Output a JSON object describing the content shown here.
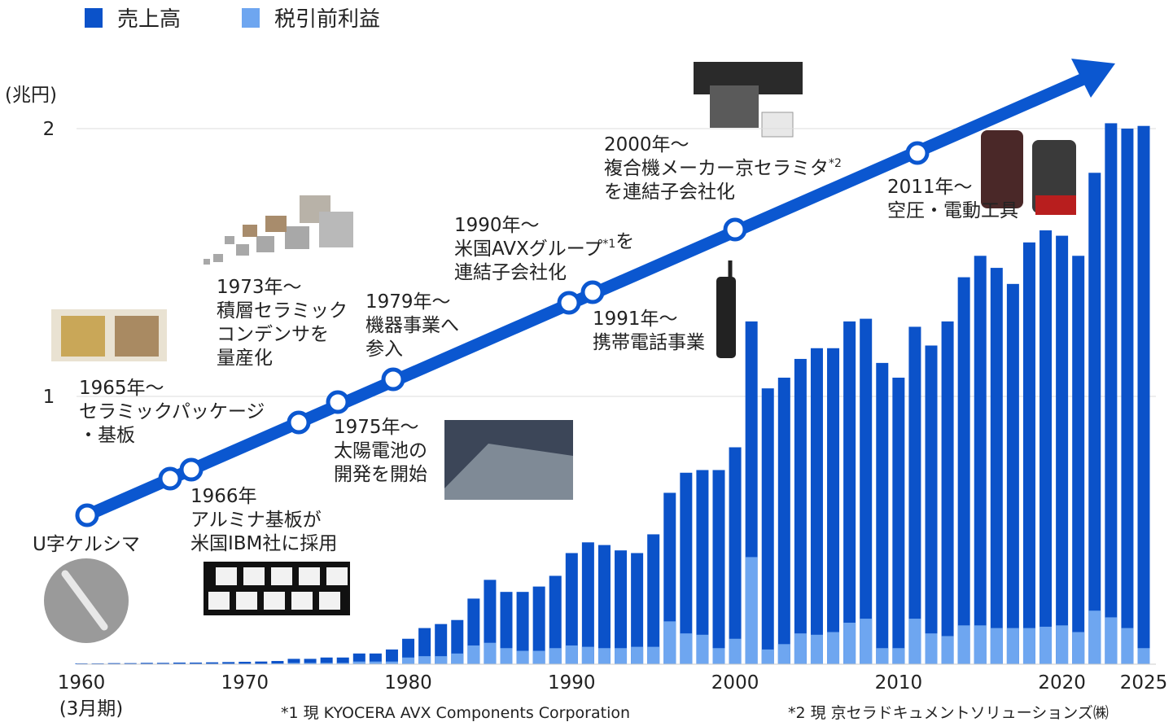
{
  "chart_data": {
    "type": "bar",
    "y_unit": "(兆円)",
    "x_unit": "(3月期)",
    "x": [
      1960,
      1961,
      1962,
      1963,
      1964,
      1965,
      1966,
      1967,
      1968,
      1969,
      1970,
      1971,
      1972,
      1973,
      1974,
      1975,
      1976,
      1977,
      1978,
      1979,
      1980,
      1981,
      1982,
      1983,
      1984,
      1985,
      1986,
      1987,
      1988,
      1989,
      1990,
      1991,
      1992,
      1993,
      1994,
      1995,
      1996,
      1997,
      1998,
      1999,
      2000,
      2001,
      2002,
      2003,
      2004,
      2005,
      2006,
      2007,
      2008,
      2009,
      2010,
      2011,
      2012,
      2013,
      2014,
      2015,
      2016,
      2017,
      2018,
      2019,
      2020,
      2021,
      2022,
      2023,
      2024,
      2025
    ],
    "xlim": [
      1960,
      2025
    ],
    "xticks": [
      1960,
      1970,
      1980,
      1990,
      2000,
      2010,
      2020,
      2025
    ],
    "ylim": [
      0,
      2.1
    ],
    "yticks": [
      1,
      2
    ],
    "grid": true,
    "series": [
      {
        "name": "売上高",
        "color": "#0b52c9",
        "values": [
          0.003,
          0.003,
          0.004,
          0.004,
          0.005,
          0.005,
          0.006,
          0.006,
          0.007,
          0.008,
          0.009,
          0.01,
          0.012,
          0.02,
          0.02,
          0.025,
          0.025,
          0.04,
          0.04,
          0.055,
          0.095,
          0.135,
          0.15,
          0.165,
          0.245,
          0.315,
          0.27,
          0.27,
          0.29,
          0.33,
          0.415,
          0.455,
          0.445,
          0.425,
          0.415,
          0.485,
          0.64,
          0.715,
          0.725,
          0.725,
          0.81,
          1.28,
          1.03,
          1.07,
          1.14,
          1.18,
          1.18,
          1.28,
          1.29,
          1.125,
          1.07,
          1.26,
          1.19,
          1.28,
          1.445,
          1.525,
          1.48,
          1.42,
          1.575,
          1.62,
          1.6,
          1.525,
          1.835,
          2.02,
          2.0,
          2.01
        ]
      },
      {
        "name": "税引前利益",
        "color": "#6ea6f0",
        "values": [
          0.001,
          0.001,
          0.001,
          0.001,
          0.001,
          0.001,
          0.002,
          0.002,
          0.002,
          0.002,
          0.002,
          0.002,
          0.003,
          0.005,
          0.005,
          0.005,
          0.005,
          0.01,
          0.01,
          0.01,
          0.025,
          0.03,
          0.03,
          0.04,
          0.07,
          0.08,
          0.06,
          0.05,
          0.05,
          0.06,
          0.07,
          0.065,
          0.06,
          0.06,
          0.065,
          0.065,
          0.16,
          0.115,
          0.11,
          0.06,
          0.095,
          0.4,
          0.055,
          0.075,
          0.115,
          0.11,
          0.12,
          0.155,
          0.17,
          0.06,
          0.06,
          0.17,
          0.115,
          0.105,
          0.145,
          0.145,
          0.135,
          0.135,
          0.135,
          0.14,
          0.145,
          0.12,
          0.2,
          0.175,
          0.135,
          0.06
        ]
      }
    ],
    "annotations": [
      {
        "lines": [
          [
            "U字ケルシマ"
          ]
        ]
      },
      {
        "lines": [
          [
            "1965年～"
          ],
          [
            "セラミックパッケージ"
          ],
          [
            "・基板"
          ]
        ]
      },
      {
        "lines": [
          [
            "1966年"
          ],
          [
            "アルミナ基板が"
          ],
          [
            "米国IBM社に採用"
          ]
        ]
      },
      {
        "lines": [
          [
            "1973年～"
          ],
          [
            "積層セラミック"
          ],
          [
            "コンデンサを"
          ],
          [
            "量産化"
          ]
        ]
      },
      {
        "lines": [
          [
            "1975年～"
          ],
          [
            "太陽電池の"
          ],
          [
            "開発を開始"
          ]
        ]
      },
      {
        "lines": [
          [
            "1979年～"
          ],
          [
            "機器事業へ"
          ],
          [
            "参入"
          ]
        ]
      },
      {
        "lines": [
          [
            "1990年～"
          ],
          [
            "米国AVXグループ",
            {
              "sup": "*1"
            },
            "を"
          ],
          [
            "連結子会社化"
          ]
        ]
      },
      {
        "lines": [
          [
            "1991年～"
          ],
          [
            "携帯電話事業"
          ]
        ]
      },
      {
        "lines": [
          [
            "2000年～"
          ],
          [
            "複合機メーカー京セラミタ",
            {
              "sup": "*2"
            }
          ],
          [
            "を連結子会社化"
          ]
        ]
      },
      {
        "lines": [
          [
            "2011年～"
          ],
          [
            "空圧・電動工具"
          ]
        ]
      }
    ],
    "footnotes": [
      "*1 現 KYOCERA AVX Components Corporation",
      "*2 現 京セラドキュメントソリューションズ㈱"
    ]
  }
}
